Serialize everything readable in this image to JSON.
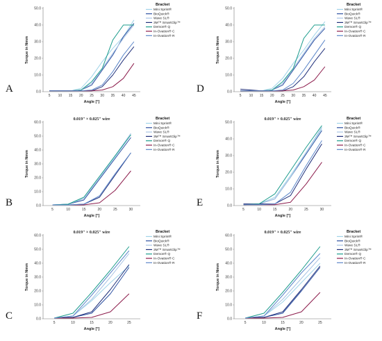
{
  "legend_title": "Bracket",
  "axis": {
    "xlabel": "Angle [°]",
    "ylabel": "Torque in Nmm"
  },
  "series_meta": [
    {
      "name": "Mini Sprint®",
      "color": "#9fd3e8"
    },
    {
      "name": "BioQuick®",
      "color": "#2a4ea0"
    },
    {
      "name": "Wave SL®",
      "color": "#a7c3e4"
    },
    {
      "name": "3M™ SmartClip™",
      "color": "#1f2f7a"
    },
    {
      "name": "Demon® Q",
      "color": "#1c9c8c"
    },
    {
      "name": "In-Ovation® C",
      "color": "#8b1a4a"
    },
    {
      "name": "In-Ovation® R",
      "color": "#5b86c9"
    }
  ],
  "chart_data": [
    {
      "letter": "A",
      "type": "line",
      "title": "",
      "xlabel": "Angle [°]",
      "ylabel": "Torque in Nmm",
      "x": [
        5,
        10,
        15,
        20,
        25,
        30,
        35,
        40,
        45
      ],
      "xticks": [
        "5",
        "10",
        "15",
        "20",
        "25",
        "30",
        "35",
        "40",
        "45"
      ],
      "ylim": [
        0,
        50
      ],
      "yticks": [
        "0.0",
        "10.0",
        "20.0",
        "30.0",
        "40.0",
        "50.0"
      ],
      "series": [
        {
          "name": "Mini Sprint®",
          "values": [
            0.5,
            0.5,
            0.5,
            2,
            9,
            18,
            26,
            33,
            43
          ]
        },
        {
          "name": "BioQuick®",
          "values": [
            0.5,
            0.5,
            0.5,
            1,
            4,
            13,
            22,
            33,
            41
          ]
        },
        {
          "name": "Wave SL®",
          "values": [
            0.5,
            0.5,
            0.5,
            1,
            5,
            14,
            23,
            32,
            40
          ]
        },
        {
          "name": "3M™ SmartClip™",
          "values": [
            0.5,
            0.5,
            0.5,
            0.5,
            0.5,
            3,
            10,
            19,
            27
          ]
        },
        {
          "name": "Demon® Q",
          "values": [
            0.5,
            0.5,
            0.5,
            1,
            6,
            14,
            31,
            40,
            40
          ]
        },
        {
          "name": "In-Ovation® C",
          "values": [
            0.5,
            0.5,
            0.5,
            0.5,
            0.5,
            1,
            3,
            8,
            17
          ]
        },
        {
          "name": "In-Ovation® R",
          "values": [
            0.5,
            0.5,
            0.5,
            0.5,
            1,
            4,
            12,
            22,
            30
          ]
        }
      ]
    },
    {
      "letter": "D",
      "type": "line",
      "title": "",
      "xlabel": "Angle [°]",
      "ylabel": "Torque in Nmm",
      "x": [
        5,
        10,
        15,
        20,
        25,
        30,
        35,
        40,
        45
      ],
      "xticks": [
        "5",
        "10",
        "15",
        "20",
        "25",
        "30",
        "35",
        "40",
        "45"
      ],
      "ylim": [
        0,
        50
      ],
      "yticks": [
        "0.0",
        "10.0",
        "20.0",
        "30.0",
        "40.0",
        "50.0"
      ],
      "series": [
        {
          "name": "Mini Sprint®",
          "values": [
            0.5,
            0.5,
            0.5,
            2,
            8,
            17,
            25,
            34,
            42
          ]
        },
        {
          "name": "BioQuick®",
          "values": [
            0.5,
            0.5,
            0.5,
            1,
            4,
            13,
            22,
            31,
            38
          ]
        },
        {
          "name": "Wave SL®",
          "values": [
            0.5,
            0.5,
            0.5,
            1,
            5,
            14,
            23,
            32,
            39
          ]
        },
        {
          "name": "3M™ SmartClip™",
          "values": [
            1.5,
            1,
            0.5,
            0.5,
            0.5,
            3,
            9,
            18,
            26
          ]
        },
        {
          "name": "Demon® Q",
          "values": [
            0.5,
            0.5,
            0.5,
            1,
            6,
            14,
            32,
            40,
            40
          ]
        },
        {
          "name": "In-Ovation® C",
          "values": [
            0.5,
            0.5,
            0.5,
            0.5,
            0.5,
            1,
            3,
            7,
            15
          ]
        },
        {
          "name": "In-Ovation® R",
          "values": [
            0.5,
            0.5,
            0.5,
            0.5,
            1,
            5,
            13,
            22,
            31
          ]
        }
      ]
    },
    {
      "letter": "B",
      "type": "line",
      "title": "0.019\" × 0.025\" wire",
      "xlabel": "Angle [°]",
      "ylabel": "Torque in Nmm",
      "x": [
        5,
        10,
        15,
        20,
        25,
        30
      ],
      "xticks": [
        "5",
        "10",
        "15",
        "20",
        "25",
        "30"
      ],
      "ylim": [
        0,
        60
      ],
      "yticks": [
        "0.0",
        "10.0",
        "20.0",
        "30.0",
        "40.0",
        "50.0",
        "60.0"
      ],
      "series": [
        {
          "name": "Mini Sprint®",
          "values": [
            0.5,
            1,
            5,
            20,
            35,
            51
          ]
        },
        {
          "name": "BioQuick®",
          "values": [
            0.5,
            1,
            4,
            19,
            34,
            49
          ]
        },
        {
          "name": "Wave SL®",
          "values": [
            0.5,
            1,
            5,
            20,
            36,
            52
          ]
        },
        {
          "name": "3M™ SmartClip™",
          "values": [
            0.5,
            0.5,
            1,
            6,
            22,
            38
          ]
        },
        {
          "name": "Demon® Q",
          "values": [
            0.5,
            1,
            6,
            21,
            36,
            51
          ]
        },
        {
          "name": "In-Ovation® C",
          "values": [
            0.5,
            0.5,
            0.5,
            2,
            11,
            25
          ]
        },
        {
          "name": "In-Ovation® R",
          "values": [
            0.5,
            0.5,
            1,
            7,
            23,
            38
          ]
        }
      ]
    },
    {
      "letter": "E",
      "type": "line",
      "title": "0.019\" × 0.025\" wire",
      "xlabel": "Angle [°]",
      "ylabel": "Torque in Nmm",
      "x": [
        5,
        10,
        15,
        20,
        25,
        30
      ],
      "xticks": [
        "5",
        "10",
        "15",
        "20",
        "25",
        "30"
      ],
      "ylim": [
        0,
        50
      ],
      "yticks": [
        "0.0",
        "10.0",
        "20.0",
        "30.0",
        "40.0",
        "50.0"
      ],
      "series": [
        {
          "name": "Mini Sprint®",
          "values": [
            0.5,
            1,
            5,
            18,
            32,
            46
          ]
        },
        {
          "name": "BioQuick®",
          "values": [
            0.5,
            1,
            4,
            17,
            31,
            45
          ]
        },
        {
          "name": "Wave SL®",
          "values": [
            0.5,
            1,
            4,
            17,
            32,
            47
          ]
        },
        {
          "name": "3M™ SmartClip™",
          "values": [
            1,
            1,
            1,
            6,
            22,
            37
          ]
        },
        {
          "name": "Demon® Q",
          "values": [
            0.5,
            1,
            7,
            21,
            35,
            48
          ]
        },
        {
          "name": "In-Ovation® C",
          "values": [
            0.5,
            0.5,
            0.5,
            2,
            13,
            26
          ]
        },
        {
          "name": "In-Ovation® R",
          "values": [
            0.5,
            0.5,
            1,
            8,
            24,
            39
          ]
        }
      ]
    },
    {
      "letter": "C",
      "type": "line",
      "title": "0.019\" × 0.025\" wire",
      "xlabel": "Angle [°]",
      "ylabel": "Torque in Nmm",
      "x": [
        5,
        10,
        15,
        20,
        25
      ],
      "xticks": [
        "5",
        "10",
        "15",
        "20",
        "25"
      ],
      "ylim": [
        0,
        60
      ],
      "yticks": [
        "0.0",
        "10.0",
        "20.0",
        "30.0",
        "40.0",
        "50.0",
        "60.0"
      ],
      "series": [
        {
          "name": "Mini Sprint®",
          "values": [
            0.5,
            2,
            13,
            26,
            38
          ]
        },
        {
          "name": "BioQuick®",
          "values": [
            0.5,
            1,
            4,
            18,
            37
          ]
        },
        {
          "name": "Wave SL®",
          "values": [
            0.5,
            2,
            14,
            30,
            47
          ]
        },
        {
          "name": "3M™ SmartClip™",
          "values": [
            0.5,
            1,
            5,
            21,
            39
          ]
        },
        {
          "name": "Demon® Q",
          "values": [
            0.5,
            4,
            19,
            35,
            52
          ]
        },
        {
          "name": "In-Ovation® C",
          "values": [
            0.5,
            0.5,
            1,
            5,
            18
          ]
        },
        {
          "name": "In-Ovation® R",
          "values": [
            0.5,
            2,
            17,
            33,
            49
          ]
        }
      ]
    },
    {
      "letter": "F",
      "type": "line",
      "title": "0.019\" × 0.025\" wire",
      "xlabel": "Angle [°]",
      "ylabel": "Torque in Nmm",
      "x": [
        5,
        10,
        15,
        20,
        25
      ],
      "xticks": [
        "5",
        "10",
        "15",
        "20",
        "25"
      ],
      "ylim": [
        0,
        60
      ],
      "yticks": [
        "0.0",
        "10.0",
        "20.0",
        "30.0",
        "40.0",
        "50.0",
        "60.0"
      ],
      "series": [
        {
          "name": "Mini Sprint®",
          "values": [
            0.5,
            2,
            12,
            26,
            40
          ]
        },
        {
          "name": "BioQuick®",
          "values": [
            0.5,
            1,
            4,
            20,
            37
          ]
        },
        {
          "name": "Wave SL®",
          "values": [
            0.5,
            2,
            14,
            29,
            44
          ]
        },
        {
          "name": "3M™ SmartClip™",
          "values": [
            0.5,
            1,
            5,
            21,
            38
          ]
        },
        {
          "name": "Demon® Q",
          "values": [
            0.5,
            4,
            19,
            35,
            52
          ]
        },
        {
          "name": "In-Ovation® C",
          "values": [
            0.5,
            0.5,
            1,
            5,
            19
          ]
        },
        {
          "name": "In-Ovation® R",
          "values": [
            0.5,
            2,
            17,
            33,
            47
          ]
        }
      ]
    }
  ]
}
